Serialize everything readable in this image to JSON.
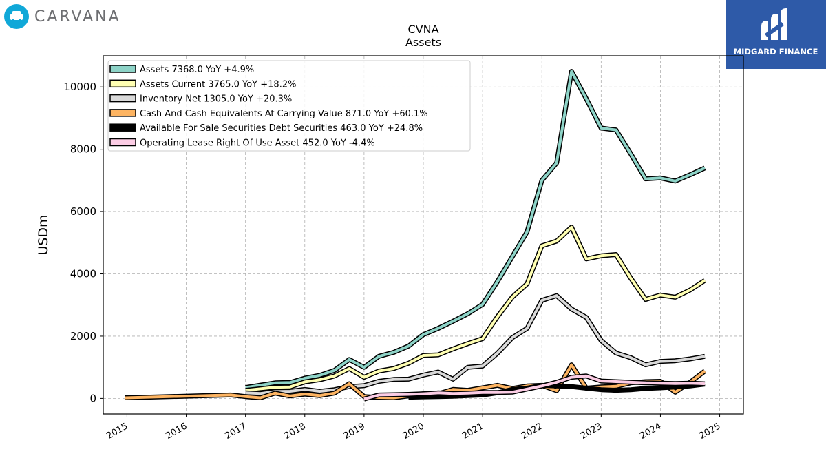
{
  "brand": {
    "left_logo_text": "CARVANA",
    "left_logo_icon": "car-badge-icon",
    "right_logo_text": "MIDGARD FINANCE",
    "right_logo_icon": "midgard-mark-icon",
    "right_logo_color": "#2e5aa8",
    "left_logo_color": "#10a8d8"
  },
  "chart_data": {
    "type": "line",
    "title": "CVNA",
    "subtitle": "Assets",
    "xlabel": "",
    "ylabel": "USDm",
    "xlim": [
      2014.6,
      2025.4
    ],
    "ylim": [
      -500,
      11000
    ],
    "x_ticks": [
      2015,
      2016,
      2017,
      2018,
      2019,
      2020,
      2021,
      2022,
      2023,
      2024,
      2025
    ],
    "x_tick_labels": [
      "2015",
      "2016",
      "2017",
      "2018",
      "2019",
      "2020",
      "2021",
      "2022",
      "2023",
      "2024",
      "2025"
    ],
    "y_ticks": [
      0,
      2000,
      4000,
      6000,
      8000,
      10000
    ],
    "y_tick_labels": [
      "0",
      "2000",
      "4000",
      "6000",
      "8000",
      "10000"
    ],
    "grid": true,
    "legend_position": "top-left",
    "series": [
      {
        "name": "Assets  7368.0 YoY +4.9%",
        "color": "#8dd3c7",
        "x": [
          2017.0,
          2017.5,
          2017.75,
          2018.0,
          2018.25,
          2018.5,
          2018.75,
          2019.0,
          2019.25,
          2019.5,
          2019.75,
          2020.0,
          2020.25,
          2020.5,
          2020.75,
          2021.0,
          2021.25,
          2021.5,
          2021.75,
          2022.0,
          2022.25,
          2022.5,
          2022.75,
          2023.0,
          2023.25,
          2023.5,
          2023.75,
          2024.0,
          2024.25,
          2024.5,
          2024.75
        ],
        "y": [
          350,
          500,
          510,
          650,
          740,
          900,
          1250,
          1000,
          1350,
          1480,
          1680,
          2050,
          2250,
          2480,
          2720,
          3020,
          3750,
          4550,
          5350,
          7000,
          7560,
          10500,
          9620,
          8680,
          8620,
          7850,
          7050,
          7080,
          6980,
          7180,
          7400
        ]
      },
      {
        "name": "Assets Current  3765.0 YoY +18.2%",
        "color": "#ffffb3",
        "x": [
          2017.0,
          2017.5,
          2017.75,
          2018.0,
          2018.25,
          2018.5,
          2018.75,
          2019.0,
          2019.25,
          2019.5,
          2019.75,
          2020.0,
          2020.25,
          2020.5,
          2020.75,
          2021.0,
          2021.25,
          2021.5,
          2021.75,
          2022.0,
          2022.25,
          2022.5,
          2022.75,
          2023.0,
          2023.25,
          2023.5,
          2023.75,
          2024.0,
          2024.25,
          2024.5,
          2024.75
        ],
        "y": [
          260,
          360,
          370,
          530,
          600,
          720,
          960,
          680,
          880,
          960,
          1130,
          1380,
          1400,
          1590,
          1760,
          1920,
          2620,
          3250,
          3680,
          4900,
          5050,
          5500,
          4480,
          4580,
          4620,
          3860,
          3180,
          3320,
          3250,
          3480,
          3790
        ]
      },
      {
        "name": "Inventory Net  1305.0 YoY +20.3%",
        "color": "#d9d9d9",
        "x": [
          2017.0,
          2017.25,
          2017.5,
          2017.75,
          2018.0,
          2018.25,
          2018.5,
          2018.75,
          2019.0,
          2019.25,
          2019.5,
          2019.75,
          2020.0,
          2020.25,
          2020.5,
          2020.75,
          2021.0,
          2021.25,
          2021.5,
          2021.75,
          2022.0,
          2022.25,
          2022.5,
          2022.75,
          2023.0,
          2023.25,
          2023.5,
          2023.75,
          2024.0,
          2024.25,
          2024.5,
          2024.75
        ],
        "y": [
          180,
          160,
          220,
          230,
          290,
          230,
          280,
          380,
          410,
          550,
          610,
          620,
          750,
          850,
          620,
          1000,
          1040,
          1450,
          1950,
          2250,
          3150,
          3300,
          2870,
          2600,
          1860,
          1460,
          1310,
          1080,
          1190,
          1210,
          1270,
          1350
        ]
      },
      {
        "name": "Cash And Cash Equivalents At Carrying Value  871.0 YoY +60.1%",
        "color": "#fdb462",
        "x": [
          2014.97,
          2016.75,
          2017.0,
          2017.25,
          2017.5,
          2017.75,
          2018.0,
          2018.25,
          2018.5,
          2018.75,
          2019.0,
          2019.25,
          2019.5,
          2019.75,
          2020.0,
          2020.25,
          2020.5,
          2020.75,
          2021.0,
          2021.25,
          2021.5,
          2021.75,
          2022.0,
          2022.25,
          2022.5,
          2022.75,
          2023.0,
          2023.25,
          2023.5,
          2023.75,
          2024.0,
          2024.25,
          2024.5,
          2024.75
        ],
        "y": [
          20,
          110,
          60,
          20,
          170,
          80,
          140,
          90,
          170,
          470,
          60,
          30,
          20,
          80,
          150,
          150,
          290,
          260,
          340,
          420,
          320,
          400,
          420,
          250,
          1080,
          330,
          370,
          390,
          500,
          540,
          550,
          200,
          520,
          880
        ]
      },
      {
        "name": "Available For Sale Securities Debt Securities  463.0 YoY +24.8%",
        "color": "#000000",
        "x": [
          2019.75,
          2020.0,
          2020.25,
          2020.5,
          2020.75,
          2021.0,
          2021.25,
          2021.5,
          2021.75,
          2022.0,
          2022.25,
          2022.5,
          2022.75,
          2023.0,
          2023.25,
          2023.5,
          2023.75,
          2024.0,
          2024.25,
          2024.5,
          2024.75
        ],
        "y": [
          40,
          50,
          60,
          70,
          90,
          110,
          180,
          290,
          330,
          420,
          400,
          380,
          330,
          280,
          260,
          280,
          320,
          340,
          370,
          400,
          460
        ]
      },
      {
        "name": "Operating Lease Right Of Use Asset  452.0 YoY -4.4%",
        "color": "#fccde5",
        "x": [
          2019.0,
          2019.25,
          2019.5,
          2019.75,
          2020.0,
          2020.25,
          2020.5,
          2020.75,
          2021.0,
          2021.25,
          2021.5,
          2021.75,
          2022.0,
          2022.25,
          2022.5,
          2022.75,
          2023.0,
          2023.25,
          2023.5,
          2023.75,
          2024.0,
          2024.25,
          2024.5,
          2024.75
        ],
        "y": [
          -20,
          110,
          120,
          130,
          150,
          180,
          160,
          170,
          190,
          190,
          200,
          300,
          400,
          520,
          680,
          720,
          560,
          540,
          520,
          500,
          490,
          480,
          490,
          470
        ]
      }
    ]
  }
}
